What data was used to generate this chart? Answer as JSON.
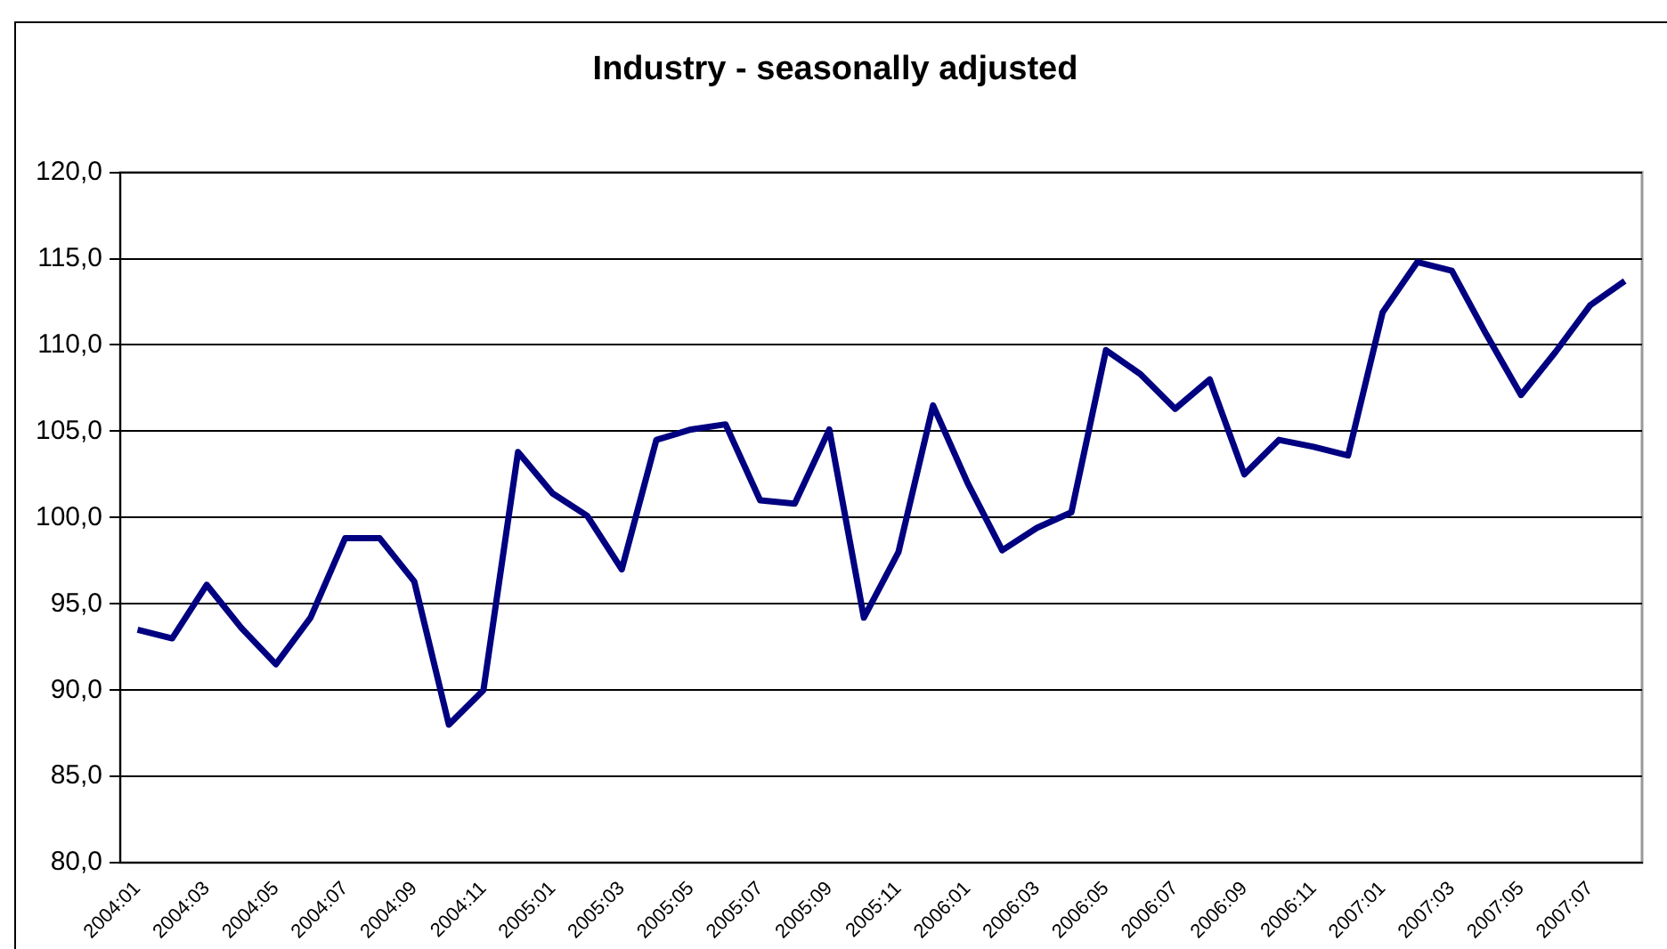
{
  "chart_data": {
    "type": "line",
    "title": "Industry - seasonally adjusted",
    "categories": [
      "2004:01",
      null,
      "2004:03",
      null,
      "2004:05",
      null,
      "2004:07",
      null,
      "2004:09",
      null,
      "2004:11",
      null,
      "2005:01",
      null,
      "2005:03",
      null,
      "2005:05",
      null,
      "2005:07",
      null,
      "2005:09",
      null,
      "2005:11",
      null,
      "2006:01",
      null,
      "2006:03",
      null,
      "2006:05",
      null,
      "2006:07",
      null,
      "2006:09",
      null,
      "2006:11",
      null,
      "2007:01",
      null,
      "2007:03",
      null,
      "2007:05",
      null,
      "2007:07",
      null
    ],
    "series": [
      {
        "color": "#000080",
        "values": [
          93.5,
          93.0,
          96.1,
          93.6,
          91.5,
          94.2,
          98.8,
          98.8,
          96.3,
          88.0,
          90.0,
          103.8,
          101.4,
          100.1,
          97.0,
          104.5,
          105.1,
          105.4,
          101.0,
          100.8,
          105.1,
          94.2,
          98.0,
          106.5,
          102.0,
          98.1,
          99.4,
          100.3,
          109.7,
          108.3,
          106.3,
          108.0,
          102.5,
          104.5,
          104.1,
          103.6,
          111.9,
          114.8,
          114.3,
          110.6,
          107.1,
          109.6,
          112.3,
          113.7
        ]
      }
    ],
    "ylim": [
      80,
      120
    ],
    "yticks": [
      {
        "value": 80,
        "label": "80,0"
      },
      {
        "value": 85,
        "label": "85,0"
      },
      {
        "value": 90,
        "label": "90,0"
      },
      {
        "value": 95,
        "label": "95,0"
      },
      {
        "value": 100,
        "label": "100,0"
      },
      {
        "value": 105,
        "label": "105,0"
      },
      {
        "value": 110,
        "label": "110,0"
      },
      {
        "value": 115,
        "label": "115,0"
      },
      {
        "value": 120,
        "label": "120,0"
      }
    ],
    "grid": "y",
    "legend": false,
    "marker": "none",
    "line_style": "solid"
  }
}
